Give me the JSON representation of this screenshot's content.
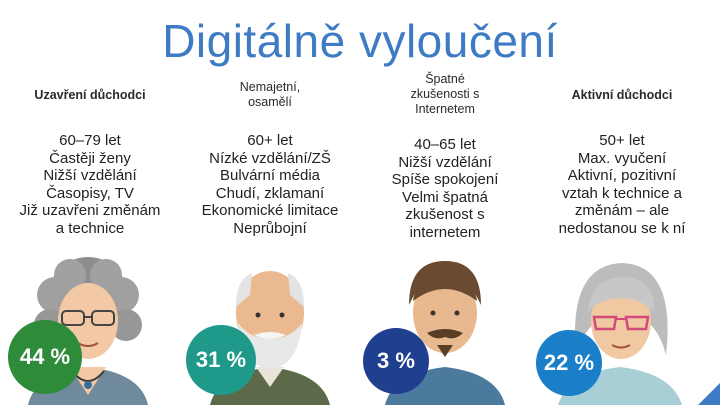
{
  "title": "Digitálně vyloučení",
  "groups": [
    {
      "heading": "Uzavření důchodci",
      "lines": [
        "60–79 let",
        "Častěji ženy",
        "Nižší vzdělání",
        "Časopisy, TV",
        "Již uzavřeni změnám",
        "a technice"
      ],
      "percent": "44 %",
      "badge_color": "#2e8b3a"
    },
    {
      "heading": "Nemajetní, osamělí",
      "lines": [
        "60+ let",
        "Nízké vzdělání/ZŠ",
        "Bulvární média",
        "Chudí, zklamaní",
        "Ekonomické limitace",
        "Neprůbojní"
      ],
      "percent": "31 %",
      "badge_color": "#1f9a8a"
    },
    {
      "heading": "Špatné zkušenosti s Internetem",
      "lines": [
        "40–65 let",
        "Nižší vzdělání",
        "Spíše spokojení",
        "Velmi špatná",
        "zkušenost s",
        "internetem"
      ],
      "percent": "3 %",
      "badge_color": "#1f3f8f"
    },
    {
      "heading": "Aktivní důchodci",
      "lines": [
        "50+ let",
        "Max. vyučení",
        "Aktivní, pozitivní",
        "vztah k technice a",
        "změnám – ale",
        "nedostanou se k ní"
      ],
      "percent": "22 %",
      "badge_color": "#1b7ec8"
    }
  ]
}
